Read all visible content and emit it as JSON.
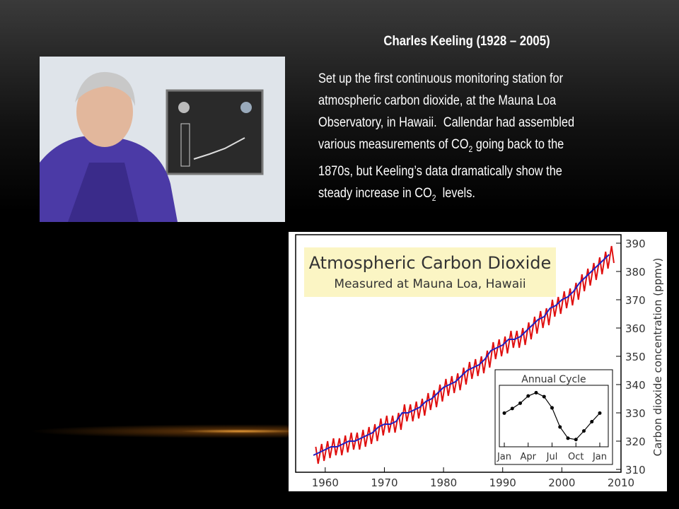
{
  "header": {
    "title": "Charles Keeling (1928 – 2005)"
  },
  "body": {
    "lines": [
      [
        {
          "text": "Set up the first continuous monitoring station for"
        }
      ],
      [
        {
          "text": "atmospheric carbon dioxide, at the Mauna Loa"
        }
      ],
      [
        {
          "text": "Observatory, in Hawaii.  Callendar had assembled"
        }
      ],
      [
        {
          "text": "various measurements of CO"
        },
        {
          "text": "2",
          "sub": true
        },
        {
          "text": " going back to the"
        }
      ],
      [
        {
          "text": "1870s, but Keeling’s data dramatically show the"
        }
      ],
      [
        {
          "text": "steady increase in CO"
        },
        {
          "text": "2",
          "sub": true
        },
        {
          "text": "  levels."
        }
      ]
    ]
  },
  "chart_data": {
    "type": "line",
    "title": "Atmospheric Carbon Dioxide",
    "subtitle": "Measured at Mauna Loa, Hawaii",
    "ylabel": "Carbon dioxide concentration (ppmv)",
    "xlim": [
      1955,
      2010
    ],
    "ylim": [
      309,
      393
    ],
    "xticks": [
      1960,
      1970,
      1980,
      1990,
      2000,
      2010
    ],
    "yticks": [
      310,
      320,
      330,
      340,
      350,
      360,
      370,
      380,
      390
    ],
    "series": [
      {
        "color": "#e01010",
        "x": [
          1958.4,
          1958.8,
          1959.4,
          1959.8,
          1960.4,
          1960.8,
          1961.4,
          1961.8,
          1962.4,
          1962.8,
          1963.4,
          1963.8,
          1964.4,
          1964.8,
          1965.4,
          1965.8,
          1966.4,
          1966.8,
          1967.4,
          1967.8,
          1968.4,
          1968.8,
          1969.4,
          1969.8,
          1970.4,
          1970.8,
          1971.4,
          1971.8,
          1972.4,
          1972.8,
          1973.4,
          1973.8,
          1974.4,
          1974.8,
          1975.4,
          1975.8,
          1976.4,
          1976.8,
          1977.4,
          1977.8,
          1978.4,
          1978.8,
          1979.4,
          1979.8,
          1980.4,
          1980.8,
          1981.4,
          1981.8,
          1982.4,
          1982.8,
          1983.4,
          1983.8,
          1984.4,
          1984.8,
          1985.4,
          1985.8,
          1986.4,
          1986.8,
          1987.4,
          1987.8,
          1988.4,
          1988.8,
          1989.4,
          1989.8,
          1990.4,
          1990.8,
          1991.4,
          1991.8,
          1992.4,
          1992.8,
          1993.4,
          1993.8,
          1994.4,
          1994.8,
          1995.4,
          1995.8,
          1996.4,
          1996.8,
          1997.4,
          1997.8,
          1998.4,
          1998.8,
          1999.4,
          1999.8,
          2000.4,
          2000.8,
          2001.4,
          2001.8,
          2002.4,
          2002.8,
          2003.4,
          2003.8,
          2004.4,
          2004.8,
          2005.4,
          2005.8,
          2006.4,
          2006.8,
          2007.4,
          2007.8,
          2008.4,
          2008.8
        ],
        "values": [
          318,
          312,
          319,
          313,
          320,
          314,
          321,
          315,
          321,
          315,
          322,
          316,
          323,
          317,
          323,
          317,
          324,
          318,
          325,
          319,
          326,
          320,
          328,
          322,
          329,
          323,
          329,
          323,
          330,
          324,
          333,
          327,
          333,
          327,
          334,
          328,
          335,
          329,
          337,
          331,
          338,
          332,
          340,
          334,
          342,
          336,
          343,
          337,
          344,
          338,
          346,
          340,
          348,
          342,
          349,
          343,
          350,
          344,
          352,
          346,
          355,
          349,
          356,
          350,
          357,
          351,
          359,
          353,
          359,
          353,
          360,
          354,
          362,
          356,
          364,
          358,
          366,
          360,
          367,
          361,
          370,
          364,
          371,
          365,
          373,
          367,
          374,
          368,
          376,
          370,
          379,
          373,
          381,
          375,
          383,
          377,
          385,
          379,
          387,
          381,
          389,
          383
        ]
      },
      {
        "color": "#2020c0",
        "x": [
          1958,
          1959,
          1960,
          1961,
          1962,
          1963,
          1964,
          1965,
          1966,
          1967,
          1968,
          1969,
          1970,
          1971,
          1972,
          1973,
          1974,
          1975,
          1976,
          1977,
          1978,
          1979,
          1980,
          1981,
          1982,
          1983,
          1984,
          1985,
          1986,
          1987,
          1988,
          1989,
          1990,
          1991,
          1992,
          1993,
          1994,
          1995,
          1996,
          1997,
          1998,
          1999,
          2000,
          2001,
          2002,
          2003,
          2004,
          2005,
          2006,
          2007,
          2008
        ],
        "values": [
          315,
          316,
          317,
          318,
          318,
          319,
          320,
          320,
          321,
          322,
          323,
          325,
          326,
          326,
          327,
          330,
          330,
          331,
          332,
          334,
          335,
          337,
          339,
          340,
          341,
          343,
          345,
          346,
          347,
          349,
          352,
          353,
          354,
          356,
          356,
          357,
          359,
          361,
          363,
          364,
          367,
          368,
          370,
          371,
          373,
          376,
          378,
          380,
          382,
          384,
          386
        ]
      }
    ],
    "inset": {
      "title": "Annual Cycle",
      "categories": [
        "Jan",
        null,
        null,
        "Apr",
        null,
        null,
        "Jul",
        null,
        null,
        "Oct",
        null,
        null,
        "Jan"
      ],
      "values": [
        0.6,
        1.3,
        2.1,
        3.2,
        3.7,
        3.1,
        1.4,
        -1.5,
        -3.2,
        -3.4,
        -2.1,
        -0.7,
        0.6
      ],
      "ylim": [
        -4.5,
        4.5
      ],
      "color": "#000000"
    }
  }
}
